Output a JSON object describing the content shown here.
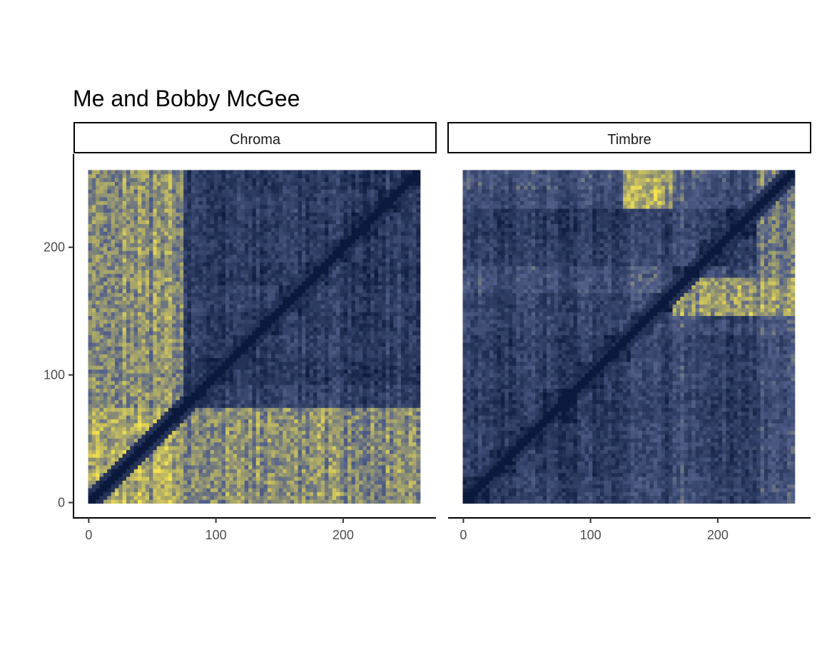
{
  "chart_data": {
    "type": "heatmap",
    "title": "Me and Bobby McGee",
    "xlabel": "",
    "ylabel": "",
    "n_frames": 261,
    "xlim": [
      -12,
      273
    ],
    "ylim": [
      -12,
      273
    ],
    "x_ticks": [
      0,
      100,
      200
    ],
    "y_ticks": [
      0,
      100,
      200
    ],
    "x_tick_labels": [
      "0",
      "100",
      "200"
    ],
    "y_tick_labels": [
      "0",
      "100",
      "200"
    ],
    "color_scale": {
      "low": "#0b1a3c",
      "mid": "#52608a",
      "high": "#f4e34e"
    },
    "panels": [
      {
        "name": "Chroma",
        "section_boundaries": [
          0,
          9,
          18,
          27,
          36,
          45,
          54,
          63,
          74,
          93,
          112,
          131,
          150,
          169,
          188,
          207,
          226,
          245,
          261
        ],
        "section_levels": [
          0.85,
          0.78,
          0.9,
          0.72,
          0.82,
          0.7,
          0.86,
          0.76,
          0.35,
          0.2,
          0.3,
          0.22,
          0.32,
          0.2,
          0.28,
          0.24,
          0.3,
          0.22
        ],
        "notes": "early frames (0-73) bright yellow against later frames; diagonal dark; checkered dark blue block structure for frames 74-261"
      },
      {
        "name": "Timbre",
        "section_boundaries": [
          0,
          20,
          40,
          63,
          90,
          110,
          130,
          148,
          165,
          185,
          205,
          230,
          245,
          261
        ],
        "section_levels": [
          0.35,
          0.25,
          0.3,
          0.22,
          0.3,
          0.25,
          0.4,
          0.35,
          0.55,
          0.3,
          0.22,
          0.5,
          0.6
        ],
        "notes": "mostly dark blue; bright yellow vertical bands near frames 130-165 in rows 230-261; bright band rows 150-170 for columns 165-261"
      }
    ]
  }
}
